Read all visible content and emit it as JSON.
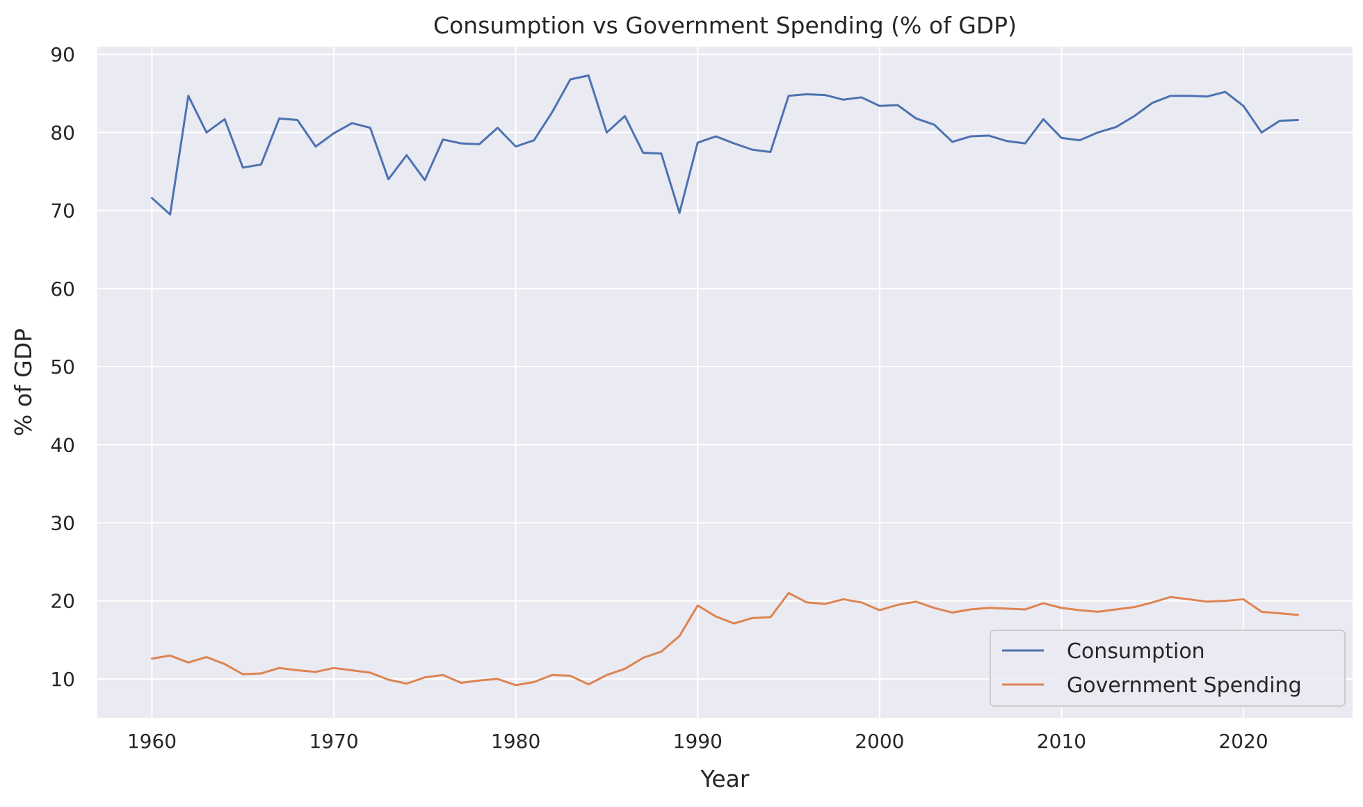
{
  "chart_data": {
    "type": "line",
    "title": "Consumption vs Government Spending (% of GDP)",
    "xlabel": "Year",
    "ylabel": "% of GDP",
    "xlim": [
      1957,
      2026
    ],
    "ylim": [
      5,
      91
    ],
    "x_ticks": [
      1960,
      1970,
      1980,
      1990,
      2000,
      2010,
      2020
    ],
    "y_ticks": [
      10,
      20,
      30,
      40,
      50,
      60,
      70,
      80,
      90
    ],
    "grid": true,
    "legend_position": "lower-right",
    "x": [
      1960,
      1961,
      1962,
      1963,
      1964,
      1965,
      1966,
      1967,
      1968,
      1969,
      1970,
      1971,
      1972,
      1973,
      1974,
      1975,
      1976,
      1977,
      1978,
      1979,
      1980,
      1981,
      1982,
      1983,
      1984,
      1985,
      1986,
      1987,
      1988,
      1989,
      1990,
      1991,
      1992,
      1993,
      1994,
      1995,
      1996,
      1997,
      1998,
      1999,
      2000,
      2001,
      2002,
      2003,
      2004,
      2005,
      2006,
      2007,
      2008,
      2009,
      2010,
      2011,
      2012,
      2013,
      2014,
      2015,
      2016,
      2017,
      2018,
      2019,
      2020,
      2021,
      2022,
      2023
    ],
    "series": [
      {
        "name": "Consumption",
        "color": "#4c72b0",
        "values": [
          71.6,
          69.5,
          84.7,
          80.0,
          81.7,
          75.5,
          75.9,
          81.8,
          81.6,
          78.2,
          79.9,
          81.2,
          80.6,
          74.0,
          77.1,
          73.9,
          79.1,
          78.6,
          78.5,
          80.6,
          78.2,
          79.0,
          82.6,
          86.8,
          87.3,
          80.0,
          82.1,
          77.4,
          77.3,
          69.7,
          78.7,
          79.5,
          78.6,
          77.8,
          77.5,
          84.7,
          84.9,
          84.8,
          84.2,
          84.5,
          83.4,
          83.5,
          81.8,
          81.0,
          78.8,
          79.5,
          79.6,
          78.9,
          78.6,
          81.7,
          79.3,
          79.0,
          80.0,
          80.7,
          82.1,
          83.8,
          84.7,
          84.7,
          84.6,
          85.2,
          83.4,
          80.0,
          81.5,
          81.6
        ]
      },
      {
        "name": "Government Spending",
        "color": "#dd8452",
        "values": [
          12.6,
          13.0,
          12.1,
          12.8,
          11.9,
          10.6,
          10.7,
          11.4,
          11.1,
          10.9,
          11.4,
          11.1,
          10.8,
          9.9,
          9.4,
          10.2,
          10.5,
          9.5,
          9.8,
          10.0,
          9.2,
          9.6,
          10.5,
          10.4,
          9.3,
          10.5,
          11.3,
          12.7,
          13.5,
          15.5,
          19.4,
          18.0,
          17.1,
          17.8,
          17.9,
          21.0,
          19.8,
          19.6,
          20.2,
          19.8,
          18.8,
          19.5,
          19.9,
          19.1,
          18.5,
          18.9,
          19.1,
          19.0,
          18.9,
          19.7,
          19.1,
          18.8,
          18.6,
          18.9,
          19.2,
          19.8,
          20.5,
          20.2,
          19.9,
          20.0,
          20.2,
          18.6,
          18.4,
          18.2
        ]
      }
    ]
  },
  "style": {
    "background": "#ffffff",
    "plot_background": "#eaeaf2",
    "grid_color": "#ffffff",
    "text_color": "#262626",
    "legend_background": "#eaeaf2",
    "legend_border": "#cccccc"
  }
}
